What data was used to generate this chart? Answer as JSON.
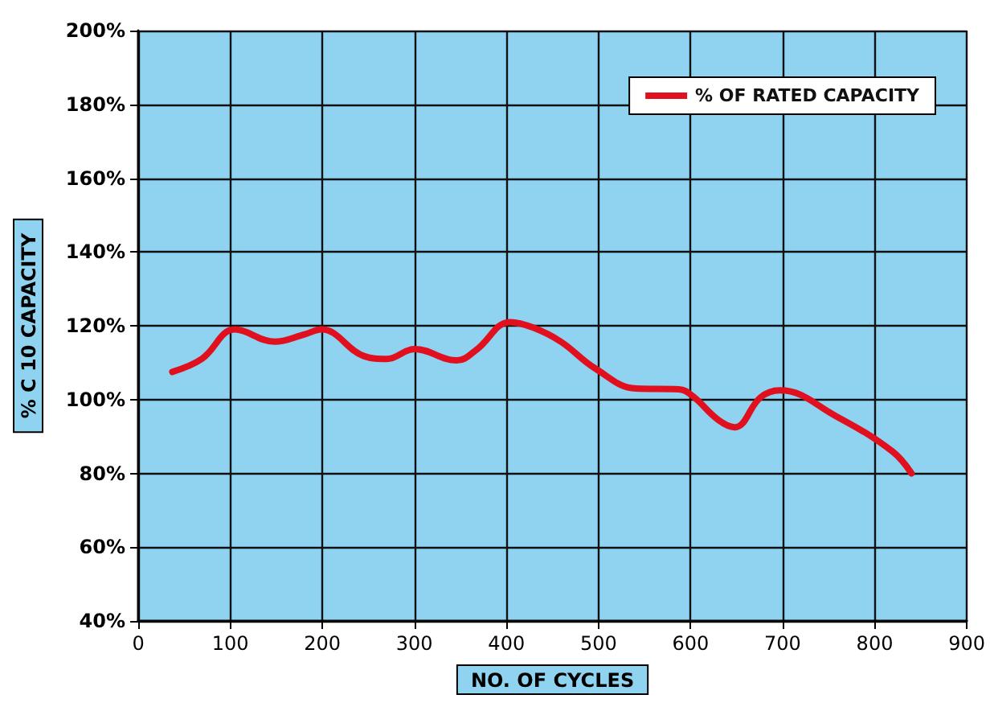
{
  "chart_data": {
    "type": "line",
    "xlabel": "NO. OF CYCLES",
    "ylabel": "% C 10 CAPACITY",
    "xlim": [
      0,
      900
    ],
    "xticks": [
      0,
      100,
      200,
      300,
      400,
      500,
      600,
      700,
      800,
      900
    ],
    "ylim": [
      40,
      200
    ],
    "yticks": [
      {
        "value": 40,
        "label": "40%"
      },
      {
        "value": 60,
        "label": "60%"
      },
      {
        "value": 80,
        "label": "80%"
      },
      {
        "value": 100,
        "label": "100%"
      },
      {
        "value": 120,
        "label": "120%"
      },
      {
        "value": 140,
        "label": "140%"
      },
      {
        "value": 160,
        "label": "160%"
      },
      {
        "value": 180,
        "label": "180%"
      },
      {
        "value": 200,
        "label": "200%"
      }
    ],
    "grid": true,
    "legend": "top right",
    "marker": "none",
    "line_style": "solid",
    "series": [
      {
        "name": "% OF RATED CAPACITY",
        "color": "#e0101e",
        "x": [
          37,
          69,
          105,
          148,
          181,
          199,
          245,
          270,
          300,
          346,
          367,
          404,
          429,
          459,
          496,
          541,
          587,
          602,
          630,
          648,
          676,
          697,
          758,
          819,
          840
        ],
        "values": [
          107.5,
          111,
          119,
          115.7,
          117.7,
          119,
          111.8,
          111,
          113.7,
          110.6,
          113.4,
          121,
          119.5,
          115.7,
          108.5,
          103,
          102.8,
          101,
          94.5,
          92.5,
          100.6,
          102.5,
          95.5,
          86,
          80
        ]
      }
    ]
  }
}
